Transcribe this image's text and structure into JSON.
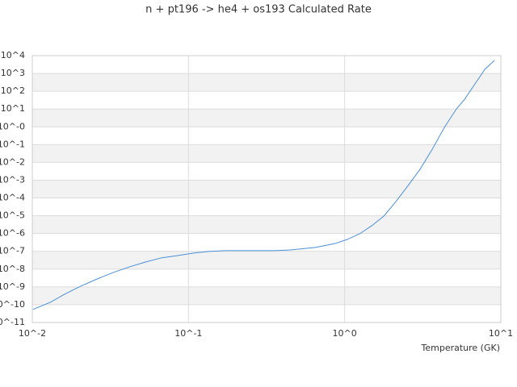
{
  "chart_data": {
    "type": "line",
    "title": "n + pt196 -> he4 + os193 Calculated Rate",
    "xlabel": "Temperature (GK)",
    "xscale": "log",
    "yscale": "log",
    "grid": true,
    "xlim": [
      0.01,
      10
    ],
    "ylim": [
      1e-11,
      10000
    ],
    "xticks": [
      {
        "value": 0.01,
        "label": "10^-2"
      },
      {
        "value": 0.1,
        "label": "10^-1"
      },
      {
        "value": 1,
        "label": "10^0"
      },
      {
        "value": 10,
        "label": "10^1"
      }
    ],
    "yticks": [
      {
        "value": 10000,
        "label": "10^4"
      },
      {
        "value": 1000,
        "label": "10^3"
      },
      {
        "value": 100,
        "label": "10^2"
      },
      {
        "value": 10,
        "label": "10^1"
      },
      {
        "value": 1,
        "label": "10^-0"
      },
      {
        "value": 0.1,
        "label": "10^-1"
      },
      {
        "value": 0.01,
        "label": "10^-2"
      },
      {
        "value": 0.001,
        "label": "10^-3"
      },
      {
        "value": 0.0001,
        "label": "10^-4"
      },
      {
        "value": 1e-05,
        "label": "10^-5"
      },
      {
        "value": 1e-06,
        "label": "10^-6"
      },
      {
        "value": 1e-07,
        "label": "10^-7"
      },
      {
        "value": 1e-08,
        "label": "10^-8"
      },
      {
        "value": 1e-09,
        "label": "10^-9"
      },
      {
        "value": 1e-10,
        "label": "10^-10"
      },
      {
        "value": 1e-11,
        "label": "10^-11"
      }
    ],
    "series": [
      {
        "color": "#4a90d9",
        "x": [
          0.0101,
          0.013,
          0.0161,
          0.0204,
          0.026,
          0.033,
          0.042,
          0.053,
          0.067,
          0.085,
          0.108,
          0.137,
          0.174,
          0.357,
          0.45,
          0.65,
          0.87,
          1.04,
          1.25,
          1.49,
          1.78,
          2.13,
          2.55,
          3.04,
          3.64,
          4.35,
          5.2,
          5.86,
          7.0,
          7.9,
          9.1
        ],
        "values": [
          5.4e-11,
          1.35e-10,
          3.9e-10,
          1.1e-09,
          2.8e-09,
          6.5e-09,
          1.35e-08,
          2.5e-08,
          4.3e-08,
          5.8e-08,
          8e-08,
          1e-07,
          1.1e-07,
          1.1e-07,
          1.2e-07,
          1.66e-07,
          2.75e-07,
          4.7e-07,
          9.8e-07,
          2.75e-06,
          9.5e-06,
          6.3e-05,
          0.0005,
          0.0041,
          0.055,
          0.93,
          10.2,
          35,
          355,
          1700,
          5400
        ]
      }
    ]
  }
}
